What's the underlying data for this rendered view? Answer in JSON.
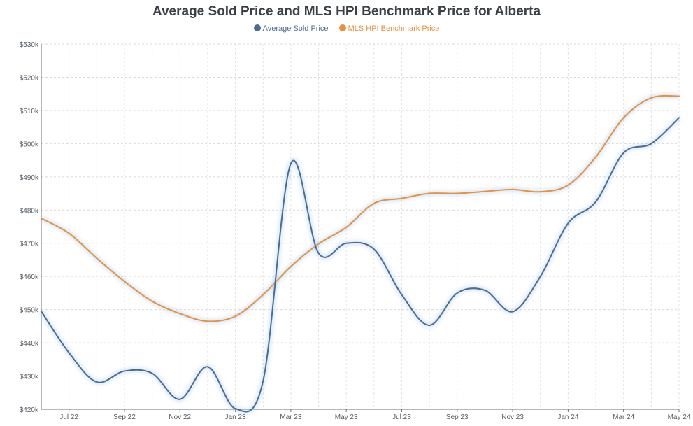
{
  "chart_data": {
    "type": "line",
    "title": "Average Sold Price and MLS HPI Benchmark Price for Alberta",
    "xlabel": "",
    "ylabel": "",
    "ylim": [
      420000,
      530000
    ],
    "y_ticks": [
      420000,
      430000,
      440000,
      450000,
      460000,
      470000,
      480000,
      490000,
      500000,
      510000,
      520000,
      530000
    ],
    "y_tick_labels": [
      "$420k",
      "$430k",
      "$440k",
      "$450k",
      "$460k",
      "$470k",
      "$480k",
      "$490k",
      "$500k",
      "$510k",
      "$520k",
      "$530k"
    ],
    "x": [
      "Jun 22",
      "Jul 22",
      "Aug 22",
      "Sep 22",
      "Oct 22",
      "Nov 22",
      "Dec 22",
      "Jan 23",
      "Feb 23",
      "Mar 23",
      "Apr 23",
      "May 23",
      "Jun 23",
      "Jul 23",
      "Aug 23",
      "Sep 23",
      "Oct 23",
      "Nov 23",
      "Dec 23",
      "Jan 24",
      "Feb 24",
      "Mar 24",
      "Apr 24",
      "May 24"
    ],
    "x_tick_labels": [
      "Jul 22",
      "Sep 22",
      "Nov 22",
      "Jan 23",
      "Mar 23",
      "May 23",
      "Jul 23",
      "Sep 23",
      "Nov 23",
      "Jan 24",
      "Mar 24",
      "May 24"
    ],
    "x_tick_indices": [
      1,
      3,
      5,
      7,
      9,
      11,
      13,
      15,
      17,
      19,
      21,
      23
    ],
    "grid": true,
    "legend_position": "top-center",
    "series": [
      {
        "name": "Average Sold Price",
        "color": "#4a6d94",
        "values": [
          449500,
          437000,
          428200,
          431500,
          430800,
          423000,
          432800,
          420200,
          428500,
          494000,
          467000,
          470000,
          468200,
          454500,
          445300,
          455000,
          455800,
          449400,
          460000,
          476000,
          482500,
          497200,
          500000,
          507800
        ]
      },
      {
        "name": "MLS HPI Benchmark Price",
        "color": "#e8903c",
        "values": [
          477500,
          473000,
          465500,
          458500,
          452500,
          448800,
          446500,
          448000,
          454500,
          463000,
          469800,
          474800,
          482000,
          483500,
          485000,
          485000,
          485600,
          486200,
          485500,
          487500,
          496000,
          507800,
          513800,
          514300
        ]
      }
    ]
  }
}
